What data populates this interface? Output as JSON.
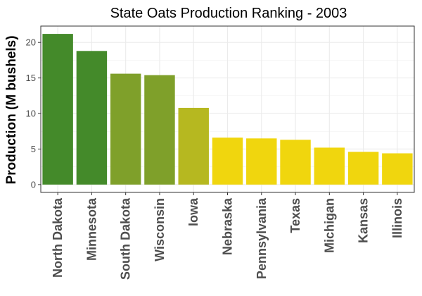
{
  "chart_data": {
    "type": "bar",
    "title": "State Oats Production Ranking - 2003",
    "xlabel": "",
    "ylabel": "Production (M bushels)",
    "categories": [
      "North Dakota",
      "Minnesota",
      "South Dakota",
      "Wisconsin",
      "Iowa",
      "Nebraska",
      "Pennsylvania",
      "Texas",
      "Michigan",
      "Kansas",
      "Illinois"
    ],
    "values": [
      21.2,
      18.8,
      15.6,
      15.4,
      10.8,
      6.6,
      6.5,
      6.3,
      5.2,
      4.6,
      4.4
    ],
    "colors": [
      "#448a2a",
      "#448a2a",
      "#7fa02a",
      "#7fa02a",
      "#b6b820",
      "#f0d60e",
      "#f0d60e",
      "#f0d60e",
      "#f0d60e",
      "#f0d60e",
      "#f0d60e"
    ],
    "ylim": [
      -1.1,
      22.3
    ],
    "yticks": [
      0,
      5,
      10,
      15,
      20
    ],
    "grid": true,
    "legend": "none"
  }
}
